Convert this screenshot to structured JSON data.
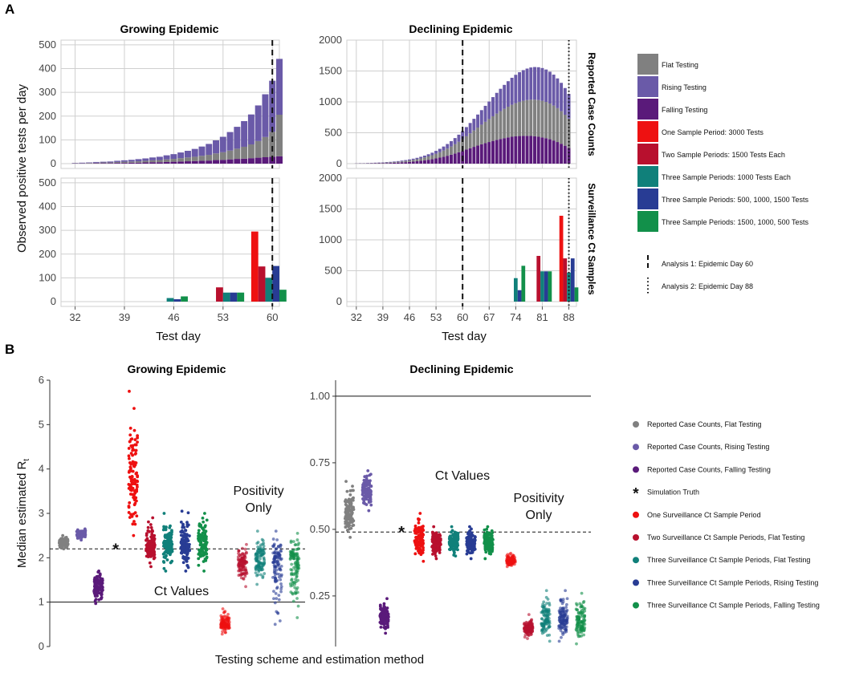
{
  "panel_a": {
    "label": "A",
    "ylabel": "Observed positive tests per day",
    "xlabel": "Test day",
    "strip_top": "Reported Case Counts",
    "strip_bottom": "Surveillance Ct Samples",
    "legend": [
      {
        "label": "Flat Testing",
        "color": "#808080"
      },
      {
        "label": "Rising Testing",
        "color": "#6a5aa8"
      },
      {
        "label": "Falling Testing",
        "color": "#5a1a7a"
      },
      {
        "label": "One Sample Period: 3000 Tests",
        "color": "#ee1111"
      },
      {
        "label": "Two Sample Periods: 1500 Tests Each",
        "color": "#b8102e"
      },
      {
        "label": "Three Sample Periods: 1000 Tests Each",
        "color": "#10807a"
      },
      {
        "label": "Three Sample Periods: 500, 1000, 1500 Tests",
        "color": "#283c94"
      },
      {
        "label": "Three Sample Periods: 1500, 1000, 500 Tests",
        "color": "#12904a"
      }
    ],
    "analysis_legend": [
      {
        "label": "Analysis 1: Epidemic Day 60",
        "style": "dashed"
      },
      {
        "label": "Analysis 2: Epidemic Day 88",
        "style": "dotted"
      }
    ]
  },
  "panel_b": {
    "label": "B",
    "ylabel_main": "Median estimated R",
    "ylabel_sub": "t",
    "xlabel": "Testing scheme and estimation method",
    "annotations": {
      "ct_values": "Ct Values",
      "positivity_1": "Positivity",
      "positivity_2": "Only"
    },
    "legend": [
      {
        "label": "Reported Case Counts, Flat Testing",
        "color": "#808080",
        "marker": "dot"
      },
      {
        "label": "Reported Case Counts, Rising Testing",
        "color": "#6a5aa8",
        "marker": "dot"
      },
      {
        "label": "Reported Case Counts, Falling Testing",
        "color": "#5a1a7a",
        "marker": "dot"
      },
      {
        "label": "Simulation Truth",
        "color": "#111111",
        "marker": "star"
      },
      {
        "label": "One Surveillance Ct Sample Period",
        "color": "#ee1111",
        "marker": "dot"
      },
      {
        "label": "Two Surveillance Ct Sample Periods, Flat Testing",
        "color": "#b8102e",
        "marker": "dot"
      },
      {
        "label": "Three Surveillance Ct Sample Periods, Flat Testing",
        "color": "#10807a",
        "marker": "dot"
      },
      {
        "label": "Three Surveillance Ct Sample Periods, Rising Testing",
        "color": "#283c94",
        "marker": "dot"
      },
      {
        "label": "Three Surveillance Ct Sample Periods, Falling Testing",
        "color": "#12904a",
        "marker": "dot"
      }
    ]
  },
  "chart_data": [
    {
      "type": "bar",
      "title": "Growing Epidemic",
      "subpanel": "Reported Case Counts",
      "xlabel": "Test day",
      "ylabel": "Observed positive tests per day",
      "xlim": [
        30,
        61
      ],
      "ylim": [
        0,
        520
      ],
      "xticks": [
        32,
        39,
        46,
        53,
        60
      ],
      "yticks": [
        0,
        100,
        200,
        300,
        400,
        500
      ],
      "x_start": 32,
      "series": [
        {
          "name": "Falling Testing",
          "values": [
            1,
            1,
            1,
            2,
            2,
            2,
            3,
            3,
            4,
            4,
            5,
            6,
            6,
            7,
            8,
            9,
            10,
            11,
            12,
            13,
            15,
            16,
            18,
            20,
            21,
            23,
            25,
            27,
            29,
            31
          ]
        },
        {
          "name": "Flat Testing",
          "values": [
            1,
            1,
            2,
            2,
            3,
            3,
            4,
            5,
            5,
            6,
            7,
            8,
            9,
            11,
            12,
            14,
            16,
            18,
            21,
            24,
            28,
            32,
            37,
            43,
            50,
            58,
            70,
            85,
            105,
            175
          ]
        },
        {
          "name": "Rising Testing",
          "values": [
            1,
            2,
            2,
            3,
            3,
            4,
            5,
            6,
            7,
            9,
            10,
            12,
            14,
            17,
            20,
            24,
            28,
            33,
            39,
            46,
            55,
            65,
            78,
            92,
            108,
            126,
            150,
            180,
            215,
            235
          ]
        }
      ],
      "vlines": [
        {
          "x": 60,
          "style": "dashed"
        }
      ]
    },
    {
      "type": "bar",
      "title": "Growing Epidemic",
      "subpanel": "Surveillance Ct Samples",
      "xlabel": "Test day",
      "ylabel": "Observed positive tests per day",
      "xlim": [
        30,
        61
      ],
      "ylim": [
        0,
        520
      ],
      "xticks": [
        32,
        39,
        46,
        53,
        60
      ],
      "yticks": [
        0,
        100,
        200,
        300,
        400,
        500
      ],
      "bars": [
        {
          "x": 45.5,
          "value": 15,
          "series": "Three Sample Periods: 1000 Tests Each"
        },
        {
          "x": 46.5,
          "value": 10,
          "series": "Three Sample Periods: 500, 1000, 1500 Tests"
        },
        {
          "x": 47.5,
          "value": 22,
          "series": "Three Sample Periods: 1500, 1000, 500 Tests"
        },
        {
          "x": 52.5,
          "value": 60,
          "series": "Two Sample Periods: 1500 Tests Each"
        },
        {
          "x": 53.5,
          "value": 38,
          "series": "Three Sample Periods: 1000 Tests Each"
        },
        {
          "x": 54.5,
          "value": 38,
          "series": "Three Sample Periods: 500, 1000, 1500 Tests"
        },
        {
          "x": 55.5,
          "value": 38,
          "series": "Three Sample Periods: 1500, 1000, 500 Tests"
        },
        {
          "x": 57.5,
          "value": 295,
          "series": "One Sample Period: 3000 Tests"
        },
        {
          "x": 58.5,
          "value": 148,
          "series": "Two Sample Periods: 1500 Tests Each"
        },
        {
          "x": 59.5,
          "value": 100,
          "series": "Three Sample Periods: 1000 Tests Each"
        },
        {
          "x": 60.5,
          "value": 150,
          "series": "Three Sample Periods: 500, 1000, 1500 Tests"
        },
        {
          "x": 61.5,
          "value": 50,
          "series": "Three Sample Periods: 1500, 1000, 500 Tests"
        }
      ],
      "vlines": [
        {
          "x": 60,
          "style": "dashed"
        }
      ]
    },
    {
      "type": "bar",
      "title": "Declining Epidemic",
      "subpanel": "Reported Case Counts",
      "xlabel": "Test day",
      "ylabel": "Observed positive tests per day",
      "xlim": [
        29.5,
        90
      ],
      "ylim": [
        0,
        2000
      ],
      "xticks": [
        32,
        39,
        46,
        53,
        60,
        67,
        74,
        81,
        88
      ],
      "yticks": [
        0,
        500,
        1000,
        1500,
        2000
      ],
      "x_start": 32,
      "series": [
        {
          "name": "Falling Testing",
          "values": [
            2,
            3,
            3,
            4,
            5,
            6,
            7,
            8,
            10,
            12,
            14,
            17,
            20,
            24,
            28,
            33,
            39,
            46,
            54,
            63,
            73,
            85,
            98,
            112,
            128,
            145,
            164,
            184,
            205,
            228,
            250,
            272,
            293,
            313,
            332,
            350,
            368,
            385,
            400,
            413,
            425,
            435,
            442,
            447,
            450,
            450,
            448,
            443,
            435,
            425,
            412,
            395,
            375,
            350,
            322,
            290,
            255
          ]
        },
        {
          "name": "Flat Testing",
          "values": [
            2,
            3,
            3,
            4,
            5,
            5,
            6,
            7,
            9,
            10,
            12,
            14,
            17,
            20,
            24,
            28,
            33,
            39,
            46,
            54,
            63,
            74,
            86,
            100,
            115,
            132,
            150,
            170,
            192,
            215,
            240,
            265,
            291,
            318,
            345,
            372,
            399,
            425,
            450,
            474,
            497,
            518,
            537,
            554,
            568,
            579,
            588,
            593,
            595,
            593,
            587,
            578,
            565,
            548,
            527,
            502,
            474
          ]
        },
        {
          "name": "Rising Testing",
          "values": [
            1,
            2,
            2,
            3,
            3,
            4,
            4,
            5,
            6,
            7,
            8,
            10,
            12,
            14,
            16,
            19,
            22,
            26,
            30,
            35,
            41,
            48,
            56,
            65,
            75,
            87,
            100,
            115,
            131,
            149,
            168,
            189,
            211,
            235,
            259,
            284,
            310,
            336,
            362,
            388,
            413,
            437,
            459,
            479,
            496,
            510,
            521,
            528,
            531,
            530,
            525,
            515,
            501,
            482,
            459,
            432,
            400
          ]
        }
      ],
      "vlines": [
        {
          "x": 60,
          "style": "dashed"
        },
        {
          "x": 88,
          "style": "dotted"
        }
      ]
    },
    {
      "type": "bar",
      "title": "Declining Epidemic",
      "subpanel": "Surveillance Ct Samples",
      "xlabel": "Test day",
      "ylabel": "Observed positive tests per day",
      "xlim": [
        29.5,
        90
      ],
      "ylim": [
        0,
        2000
      ],
      "xticks": [
        32,
        39,
        46,
        53,
        60,
        67,
        74,
        81,
        88
      ],
      "yticks": [
        0,
        500,
        1000,
        1500,
        2000
      ],
      "bars": [
        {
          "x": 74,
          "value": 380,
          "series": "Three Sample Periods: 1000 Tests Each"
        },
        {
          "x": 75,
          "value": 185,
          "series": "Three Sample Periods: 500, 1000, 1500 Tests"
        },
        {
          "x": 76,
          "value": 580,
          "series": "Three Sample Periods: 1500, 1000, 500 Tests"
        },
        {
          "x": 80,
          "value": 740,
          "series": "Two Sample Periods: 1500 Tests Each"
        },
        {
          "x": 81,
          "value": 490,
          "series": "Three Sample Periods: 1000 Tests Each"
        },
        {
          "x": 82,
          "value": 490,
          "series": "Three Sample Periods: 500, 1000, 1500 Tests"
        },
        {
          "x": 83,
          "value": 490,
          "series": "Three Sample Periods: 1500, 1000, 500 Tests"
        },
        {
          "x": 86,
          "value": 1390,
          "series": "One Sample Period: 3000 Tests"
        },
        {
          "x": 87,
          "value": 700,
          "series": "Two Sample Periods: 1500 Tests Each"
        },
        {
          "x": 88,
          "value": 470,
          "series": "Three Sample Periods: 1000 Tests Each"
        },
        {
          "x": 89,
          "value": 700,
          "series": "Three Sample Periods: 500, 1000, 1500 Tests"
        },
        {
          "x": 90,
          "value": 230,
          "series": "Three Sample Periods: 1500, 1000, 500 Tests"
        }
      ],
      "vlines": [
        {
          "x": 60,
          "style": "dashed"
        },
        {
          "x": 88,
          "style": "dotted"
        }
      ]
    },
    {
      "type": "scatter",
      "title": "Growing Epidemic",
      "xlabel": "Testing scheme and estimation method",
      "ylabel": "Median estimated Rt",
      "ylim": [
        0,
        6
      ],
      "yticks": [
        0,
        1,
        2,
        3,
        4,
        5,
        6
      ],
      "hlines": [
        {
          "y": 1,
          "style": "solid"
        },
        {
          "y": 2.2,
          "style": "dashed"
        }
      ],
      "truth": {
        "x": 4,
        "y": 2.2
      },
      "groups": [
        {
          "name": "Reported Case Counts, Flat Testing",
          "x": 1,
          "median": 2.35,
          "min": 2.2,
          "max": 2.5
        },
        {
          "name": "Reported Case Counts, Rising Testing",
          "x": 2,
          "median": 2.55,
          "min": 2.4,
          "max": 2.65
        },
        {
          "name": "Reported Case Counts, Falling Testing",
          "x": 3,
          "median": 1.35,
          "min": 0.97,
          "max": 1.7
        },
        {
          "name": "One Surveillance Ct Sample Period",
          "x": 5,
          "median": 3.75,
          "min": 2.5,
          "max": 5.75
        },
        {
          "name": "Two Surveillance Ct Sample Periods, Flat Testing",
          "x": 6,
          "median": 2.25,
          "min": 1.8,
          "max": 2.9
        },
        {
          "name": "Three Surveillance Ct Sample Periods, Flat Testing",
          "x": 7,
          "median": 2.3,
          "min": 1.7,
          "max": 3.0
        },
        {
          "name": "Three Surveillance Ct Sample Periods, Rising Testing",
          "x": 8,
          "median": 2.3,
          "min": 1.7,
          "max": 3.05
        },
        {
          "name": "Three Surveillance Ct Sample Periods, Falling Testing",
          "x": 9,
          "median": 2.3,
          "min": 1.7,
          "max": 3.0
        },
        {
          "name": "One Surveillance Ct Sample Period",
          "x": 10.3,
          "median": 0.5,
          "min": 0.28,
          "max": 0.85,
          "method": "Positivity Only"
        },
        {
          "name": "Two Surveillance Ct Sample Periods, Flat Testing",
          "x": 11.3,
          "median": 1.9,
          "min": 1.35,
          "max": 2.3,
          "method": "Positivity Only"
        },
        {
          "name": "Three Surveillance Ct Sample Periods, Flat Testing",
          "x": 12.3,
          "median": 1.95,
          "min": 1.4,
          "max": 2.6,
          "method": "Positivity Only"
        },
        {
          "name": "Three Surveillance Ct Sample Periods, Rising Testing",
          "x": 13.3,
          "median": 1.95,
          "min": 0.5,
          "max": 2.6,
          "method": "Positivity Only"
        },
        {
          "name": "Three Surveillance Ct Sample Periods, Falling Testing",
          "x": 14.3,
          "median": 1.95,
          "min": 0.65,
          "max": 2.55,
          "method": "Positivity Only"
        }
      ]
    },
    {
      "type": "scatter",
      "title": "Declining Epidemic",
      "xlabel": "Testing scheme and estimation method",
      "ylabel": "Median estimated Rt",
      "ylim": [
        0.06,
        1.06
      ],
      "yticks": [
        0.25,
        0.5,
        0.75,
        1.0
      ],
      "ytick_labels": [
        "0.25",
        "0.50",
        "0.75",
        "1.00"
      ],
      "hlines": [
        {
          "y": 1.0,
          "style": "solid"
        },
        {
          "y": 0.49,
          "style": "dashed"
        }
      ],
      "truth": {
        "x": 4,
        "y": 0.49
      },
      "groups": [
        {
          "name": "Reported Case Counts, Flat Testing",
          "x": 1,
          "median": 0.57,
          "min": 0.47,
          "max": 0.68
        },
        {
          "name": "Reported Case Counts, Rising Testing",
          "x": 2,
          "median": 0.645,
          "min": 0.57,
          "max": 0.72
        },
        {
          "name": "Reported Case Counts, Falling Testing",
          "x": 3,
          "median": 0.17,
          "min": 0.11,
          "max": 0.24
        },
        {
          "name": "One Surveillance Ct Sample Period",
          "x": 5,
          "median": 0.46,
          "min": 0.38,
          "max": 0.56
        },
        {
          "name": "Two Surveillance Ct Sample Periods, Flat Testing",
          "x": 6,
          "median": 0.45,
          "min": 0.39,
          "max": 0.51
        },
        {
          "name": "Three Surveillance Ct Sample Periods, Flat Testing",
          "x": 7,
          "median": 0.45,
          "min": 0.4,
          "max": 0.51
        },
        {
          "name": "Three Surveillance Ct Sample Periods, Rising Testing",
          "x": 8,
          "median": 0.45,
          "min": 0.39,
          "max": 0.51
        },
        {
          "name": "Three Surveillance Ct Sample Periods, Falling Testing",
          "x": 9,
          "median": 0.45,
          "min": 0.39,
          "max": 0.51
        },
        {
          "name": "One Surveillance Ct Sample Period",
          "x": 10.3,
          "median": 0.38,
          "min": 0.36,
          "max": 0.41,
          "method": "Positivity Only"
        },
        {
          "name": "Two Surveillance Ct Sample Periods, Flat Testing",
          "x": 11.3,
          "median": 0.13,
          "min": 0.09,
          "max": 0.18,
          "method": "Positivity Only"
        },
        {
          "name": "Three Surveillance Ct Sample Periods, Flat Testing",
          "x": 12.3,
          "median": 0.16,
          "min": 0.08,
          "max": 0.27,
          "method": "Positivity Only"
        },
        {
          "name": "Three Surveillance Ct Sample Periods, Rising Testing",
          "x": 13.3,
          "median": 0.16,
          "min": 0.08,
          "max": 0.27,
          "method": "Positivity Only"
        },
        {
          "name": "Three Surveillance Ct Sample Periods, Falling Testing",
          "x": 14.3,
          "median": 0.15,
          "min": 0.07,
          "max": 0.26,
          "method": "Positivity Only"
        }
      ]
    }
  ]
}
